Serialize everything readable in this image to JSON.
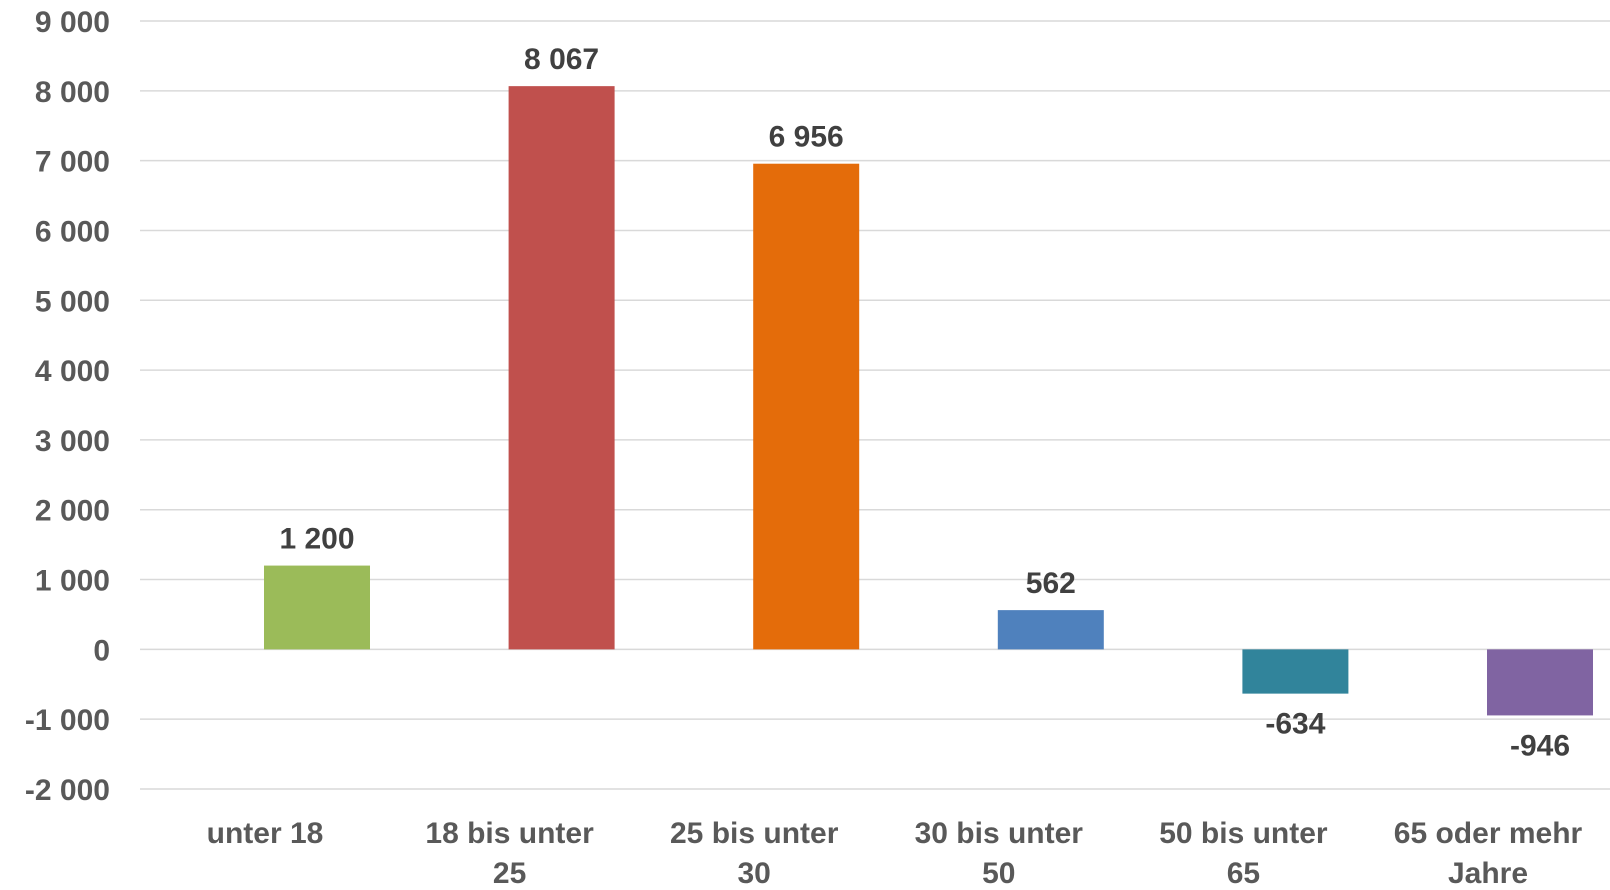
{
  "chart_data": {
    "type": "bar",
    "categories": [
      [
        "unter 18"
      ],
      [
        "18 bis unter",
        "25"
      ],
      [
        "25 bis unter",
        "30"
      ],
      [
        "30 bis unter",
        "50"
      ],
      [
        "50 bis unter",
        "65"
      ],
      [
        "65 oder mehr",
        "Jahre"
      ]
    ],
    "values": [
      1200,
      8067,
      6956,
      562,
      -634,
      -946
    ],
    "value_labels": [
      "1 200",
      "8 067",
      "6 956",
      "562",
      "-634",
      "-946"
    ],
    "colors": [
      "#9bbb59",
      "#c0504d",
      "#e46c0a",
      "#4f81bd",
      "#31849b",
      "#8064a2"
    ],
    "ylim": [
      -2000,
      9000
    ],
    "yticks": [
      {
        "value": 9000,
        "label": "9 000"
      },
      {
        "value": 8000,
        "label": "8 000"
      },
      {
        "value": 7000,
        "label": "7 000"
      },
      {
        "value": 6000,
        "label": "6 000"
      },
      {
        "value": 5000,
        "label": "5 000"
      },
      {
        "value": 4000,
        "label": "4 000"
      },
      {
        "value": 3000,
        "label": "3 000"
      },
      {
        "value": 2000,
        "label": "2 000"
      },
      {
        "value": 1000,
        "label": "1 000"
      },
      {
        "value": 0,
        "label": "0"
      },
      {
        "value": -1000,
        "label": "-1 000"
      },
      {
        "value": -2000,
        "label": "-2 000"
      }
    ],
    "grid": true,
    "legend": "none"
  }
}
